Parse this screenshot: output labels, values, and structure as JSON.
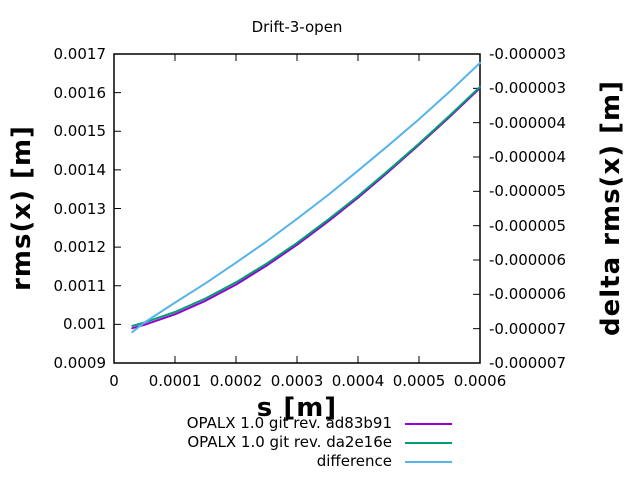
{
  "chart_data": {
    "type": "line",
    "title": "Drift-3-open",
    "xlabel": "s [m]",
    "ylabel": "rms(x) [m]",
    "y2label": "delta rms(x) [m]",
    "xlim": [
      0,
      0.0006
    ],
    "ylim": [
      0.0009,
      0.0017
    ],
    "y2lim": [
      -7e-06,
      -2.5e-06
    ],
    "grid": false,
    "legend_position": "below-plot-right",
    "xtick_labels": [
      "0",
      "0.0001",
      "0.0002",
      "0.0003",
      "0.0004",
      "0.0005",
      "0.0006"
    ],
    "ytick_labels": [
      "0.0009",
      "0.001",
      "0.0011",
      "0.0012",
      "0.0013",
      "0.0014",
      "0.0015",
      "0.0016",
      "0.0017"
    ],
    "y2tick_labels": [
      "-0.000007",
      "-0.000007",
      "-0.000006",
      "-0.000006",
      "-0.000005",
      "-0.000005",
      "-0.000004",
      "-0.000004",
      "-0.000003",
      "-0.000003"
    ],
    "series": [
      {
        "name": "OPALX 1.0 git rev. ad83b91",
        "color": "#9400d3",
        "yaxis": "y1",
        "x": [
          3e-05,
          5e-05,
          0.0001,
          0.00015,
          0.0002,
          0.00025,
          0.0003,
          0.00035,
          0.0004,
          0.00045,
          0.0005,
          0.00055,
          0.0006
        ],
        "y": [
          0.00099,
          0.000999,
          0.001026,
          0.001061,
          0.001103,
          0.001152,
          0.001206,
          0.001265,
          0.001328,
          0.001395,
          0.001465,
          0.001537,
          0.001612
        ]
      },
      {
        "name": "OPALX 1.0 git rev. da2e16e",
        "color": "#009e73",
        "yaxis": "y1",
        "x": [
          3e-05,
          5e-05,
          0.0001,
          0.00015,
          0.0002,
          0.00025,
          0.0003,
          0.00035,
          0.0004,
          0.00045,
          0.0005,
          0.00055,
          0.0006
        ],
        "y": [
          0.000996,
          0.001005,
          0.001032,
          0.001067,
          0.001109,
          0.001157,
          0.001211,
          0.00127,
          0.001332,
          0.001399,
          0.001468,
          0.00154,
          0.001615
        ]
      },
      {
        "name": "difference",
        "color": "#56b4e9",
        "yaxis": "y2",
        "x": [
          3e-05,
          5e-05,
          0.0001,
          0.00015,
          0.0002,
          0.00025,
          0.0003,
          0.00035,
          0.0004,
          0.00045,
          0.0005,
          0.00055,
          0.0006
        ],
        "y": [
          -6.55e-06,
          -6.41e-06,
          -6.12e-06,
          -5.84e-06,
          -5.54e-06,
          -5.23e-06,
          -4.9e-06,
          -4.56e-06,
          -4.2e-06,
          -3.83e-06,
          -3.45e-06,
          -3.05e-06,
          -2.63e-06
        ]
      }
    ]
  }
}
